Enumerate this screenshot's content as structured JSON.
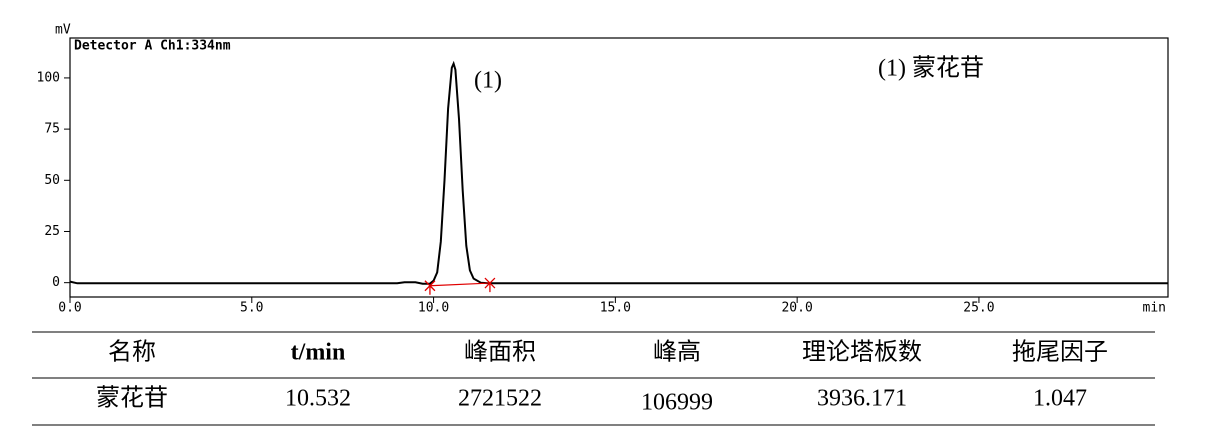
{
  "chart_data": {
    "type": "line",
    "y_label": "mV",
    "x_label": "min",
    "annotations": [
      "Detector A Ch1:334nm",
      "(1)",
      "(1)  蒙花苷"
    ],
    "x": [
      0,
      0.2,
      9.0,
      9.2,
      9.5,
      9.7,
      9.9,
      10.0,
      10.1,
      10.2,
      10.3,
      10.4,
      10.5,
      10.55,
      10.6,
      10.7,
      10.8,
      10.9,
      11.0,
      11.1,
      11.3,
      11.5,
      30.2
    ],
    "values": [
      0.5,
      -0.3,
      -0.3,
      0.2,
      0.2,
      -0.5,
      -0.5,
      1,
      5,
      20,
      50,
      85,
      105,
      107,
      104,
      80,
      45,
      18,
      6,
      2,
      0,
      -0.3,
      -0.3
    ],
    "color": "#000000",
    "baseline": {
      "x": [
        9.9,
        11.55
      ],
      "y": [
        -1.5,
        -0.2
      ],
      "color": "#e00000"
    },
    "xlim": [
      0,
      30.2
    ],
    "ylim": [
      -7,
      119.5
    ],
    "xticks": [
      {
        "value": 0,
        "label": "0.0"
      },
      {
        "value": 5,
        "label": "5.0"
      },
      {
        "value": 10,
        "label": "10.0"
      },
      {
        "value": 15,
        "label": "15.0"
      },
      {
        "value": 20,
        "label": "20.0"
      },
      {
        "value": 25,
        "label": "25.0"
      }
    ],
    "yticks": [
      0,
      25,
      50,
      75,
      100
    ]
  },
  "table": {
    "header": [
      "名称",
      "t/min",
      "峰面积",
      "峰高",
      "理论塔板数",
      "拖尾因子"
    ],
    "rows": [
      [
        "蒙花苷",
        "10.532",
        "2721522",
        "106999",
        "3936.171",
        "1.047"
      ]
    ]
  }
}
